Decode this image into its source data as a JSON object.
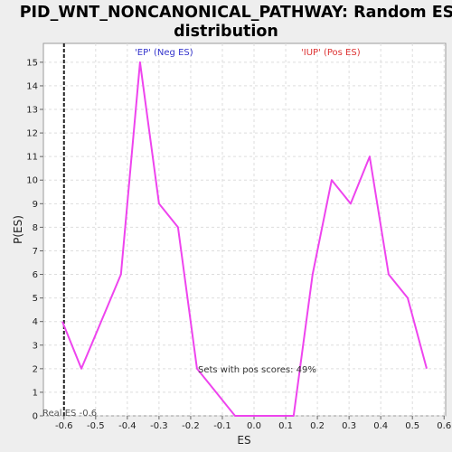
{
  "chart_data": {
    "type": "line",
    "title_lines": [
      "PID_WNT_NONCANONICAL_PATHWAY: Random ES",
      "distribution"
    ],
    "xlabel": "ES",
    "ylabel": "P(ES)",
    "xlim": [
      -0.665,
      0.605
    ],
    "ylim": [
      0,
      15.8
    ],
    "x_ticks": [
      -0.6,
      -0.5,
      -0.4,
      -0.3,
      -0.2,
      -0.1,
      0.0,
      0.1,
      0.2,
      0.3,
      0.4,
      0.5,
      0.6
    ],
    "x_tick_labels": [
      "-0.6",
      "-0.5",
      "-0.4",
      "-0.3",
      "-0.2",
      "-0.1",
      "0.0",
      "0.1",
      "0.2",
      "0.3",
      "0.4",
      "0.5",
      "0.6"
    ],
    "y_ticks": [
      0,
      1,
      2,
      3,
      4,
      5,
      6,
      7,
      8,
      9,
      10,
      11,
      12,
      13,
      14,
      15
    ],
    "y_tick_labels": [
      "0",
      "1",
      "2",
      "3",
      "4",
      "5",
      "6",
      "7",
      "8",
      "9",
      "10",
      "11",
      "12",
      "13",
      "14",
      "15"
    ],
    "grid": true,
    "series": [
      {
        "color": "#ee44ee",
        "x": [
          -0.605,
          -0.545,
          -0.42,
          -0.36,
          -0.3,
          -0.24,
          -0.18,
          -0.12,
          -0.06,
          0.0,
          0.06,
          0.125,
          0.185,
          0.245,
          0.305,
          0.365,
          0.425,
          0.485,
          0.545
        ],
        "y": [
          4,
          2,
          6,
          15,
          9,
          8,
          2,
          1,
          0,
          0,
          0,
          0,
          6,
          10,
          9,
          11,
          6,
          5,
          2
        ]
      }
    ],
    "reference_line": {
      "x": -0.6,
      "style": "dashed",
      "color": "#222222"
    },
    "annotations": {
      "neg_label": "'EP' (Neg ES)",
      "neg_color": "#3333cc",
      "pos_label": "'IUP' (Pos ES)",
      "pos_color": "#dd3333",
      "pos_scores_text": "Sets with pos scores: 49%",
      "real_es_text": "Real ES -0.6"
    }
  }
}
